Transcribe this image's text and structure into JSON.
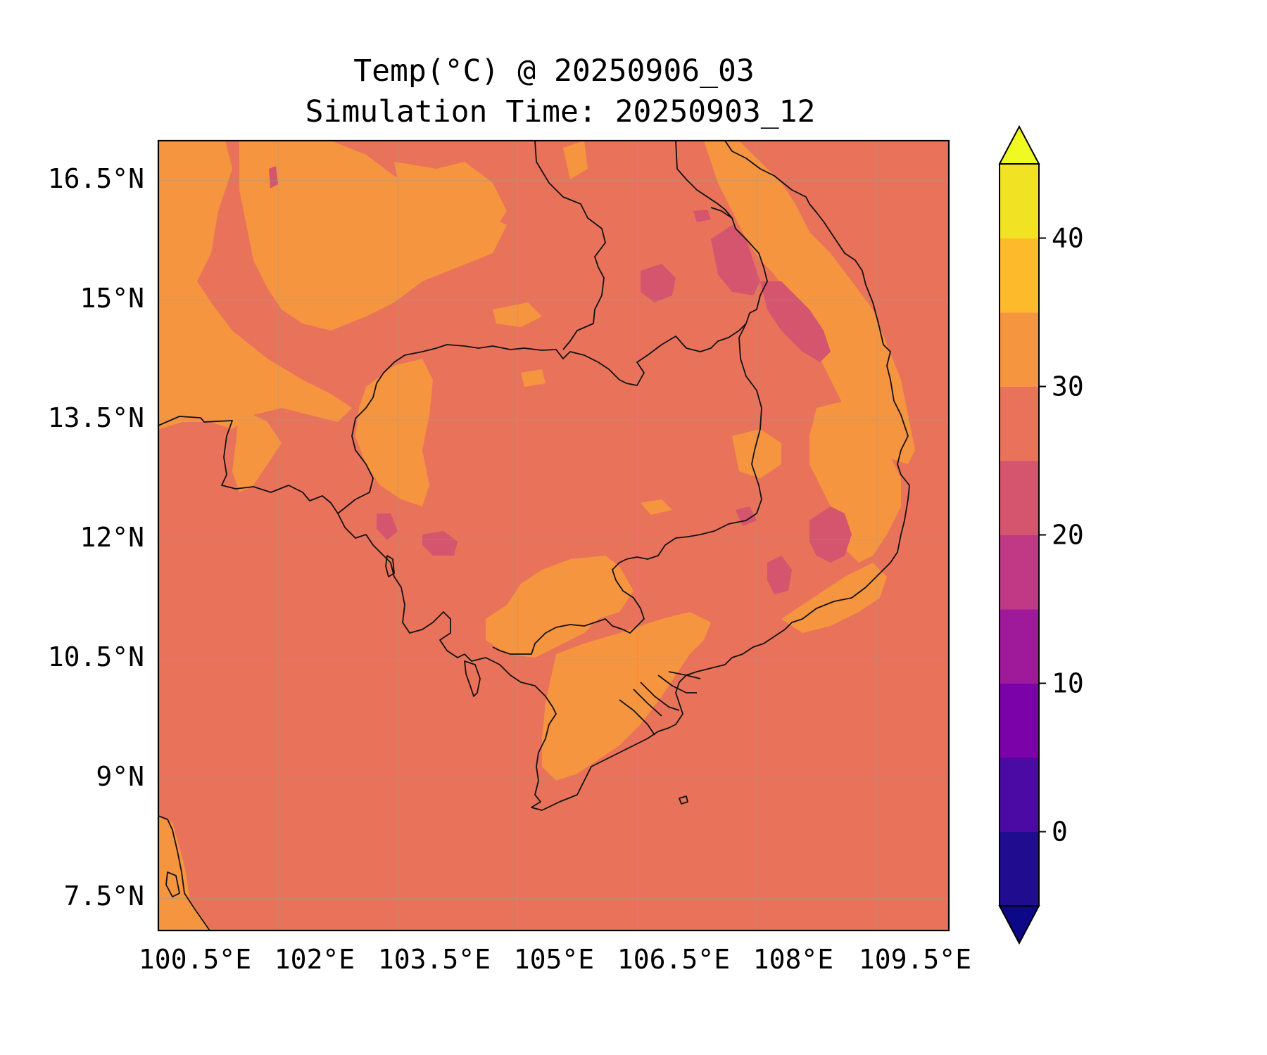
{
  "title": {
    "line1": "Temp(°C) @ 20250906_03",
    "line2": "Simulation Time: 20250903_12"
  },
  "map": {
    "lat_ticks": [
      "16.5°N",
      "15°N",
      "13.5°N",
      "12°N",
      "10.5°N",
      "9°N",
      "7.5°N"
    ],
    "lon_ticks": [
      "100.5°E",
      "102°E",
      "103.5°E",
      "105°E",
      "106.5°E",
      "108°E",
      "109.5°E"
    ],
    "lon_range": [
      100.5,
      110.4
    ],
    "lat_range": [
      7.1,
      17.0
    ],
    "background_color": "#e8735a",
    "gridlines": true
  },
  "colorbar": {
    "tick_labels": [
      "0",
      "10",
      "20",
      "30",
      "40"
    ],
    "tick_values": [
      0,
      10,
      20,
      30,
      40
    ],
    "range": [
      -5,
      45
    ],
    "extend": "both",
    "levels": [
      -5,
      0,
      5,
      10,
      15,
      20,
      25,
      30,
      35,
      40,
      45
    ],
    "colors": [
      "#1f0c8f",
      "#4a0aa3",
      "#7a02a8",
      "#9f1a9b",
      "#bf3984",
      "#d5546e",
      "#e8735a",
      "#f69540",
      "#fdbb2b",
      "#f1e224"
    ],
    "under_color": "#0d0887",
    "over_color": "#f0f921"
  }
}
